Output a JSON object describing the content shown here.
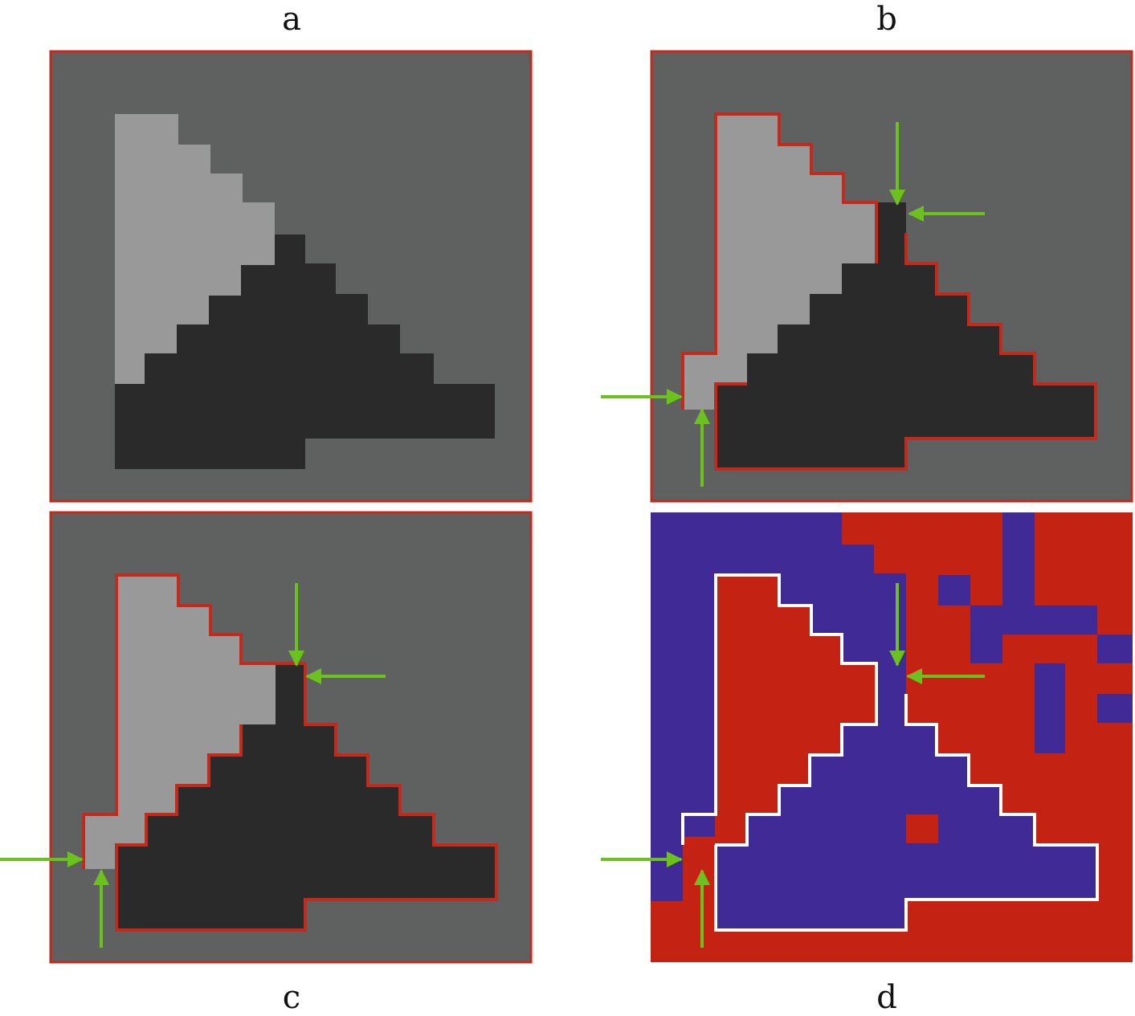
{
  "panels": [
    {
      "id": "a",
      "label": "a"
    },
    {
      "id": "b",
      "label": "b"
    },
    {
      "id": "c",
      "label": "c"
    },
    {
      "id": "d",
      "label": "d"
    }
  ],
  "colors": {
    "background_gray": "#5f6060",
    "light_region": "#999999",
    "dark_region": "#2a2a2a",
    "frame_red": "#c42a1c",
    "segment_blue": "#3f2a96",
    "segment_red": "#c42213",
    "boundary_white": "#ffffff",
    "arrow_green": "#6cc21c"
  },
  "icons": [
    "arrow-right-icon",
    "arrow-up-icon",
    "arrow-down-icon",
    "arrow-left-icon"
  ]
}
